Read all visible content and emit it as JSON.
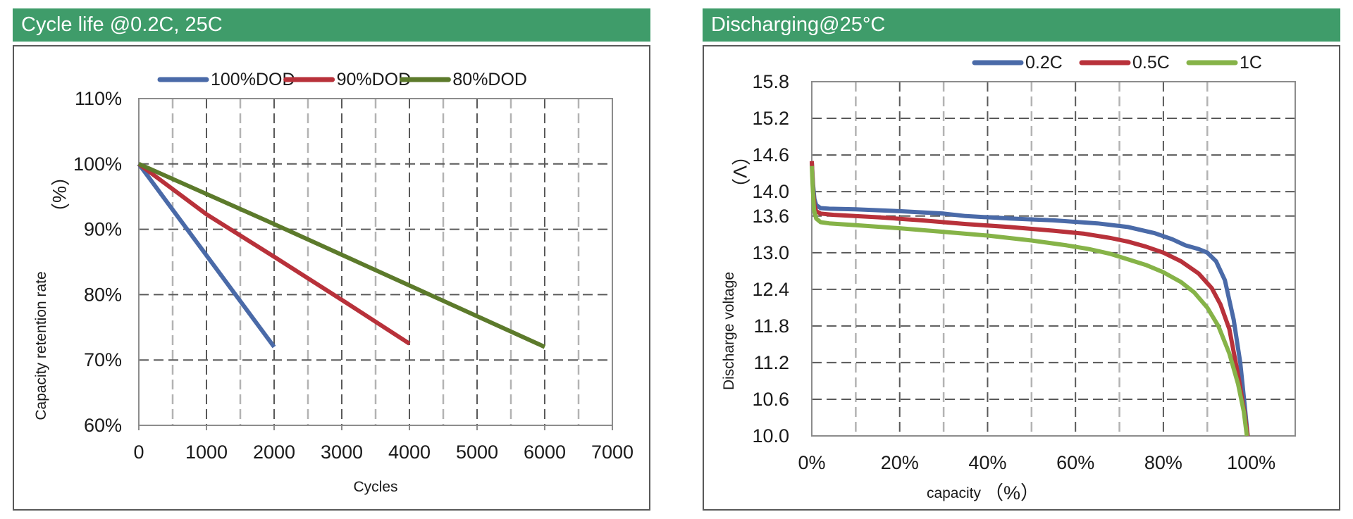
{
  "panels": [
    {
      "title": "Cycle life @0.2C, 25C"
    },
    {
      "title": "Discharging@25°C"
    }
  ],
  "colors": {
    "header_bg": "#3f9c6a",
    "header_text": "#ffffff",
    "grid_dark": "#595959",
    "grid_light": "#b3b3b3"
  },
  "chart_data": [
    {
      "type": "line",
      "title": "Cycle life @0.2C, 25C",
      "xlabel": "Cycles",
      "ylabel": "Capacity retention rate",
      "ylabel_unit": "（%）",
      "xlim": [
        0,
        7000
      ],
      "ylim": [
        60,
        110
      ],
      "xticks": [
        0,
        1000,
        2000,
        3000,
        4000,
        5000,
        6000,
        7000
      ],
      "xtick_labels": [
        "0",
        "1000",
        "2000",
        "3000",
        "4000",
        "5000",
        "6000",
        "7000"
      ],
      "yticks": [
        60,
        70,
        80,
        90,
        100,
        110
      ],
      "ytick_labels": [
        "60%",
        "70%",
        "80%",
        "90%",
        "100%",
        "110%"
      ],
      "grid": true,
      "legend_position": "top",
      "series": [
        {
          "name": "100%DOD",
          "color": "#4a6aa8",
          "x": [
            0,
            2000
          ],
          "y": [
            100,
            72
          ]
        },
        {
          "name": "90%DOD",
          "color": "#b8313a",
          "x": [
            0,
            1000,
            2000,
            3000,
            4000
          ],
          "y": [
            100,
            92.3,
            85.8,
            79.2,
            72.5
          ]
        },
        {
          "name": "80%DOD",
          "color": "#5c7a2b",
          "x": [
            0,
            2000,
            4000,
            6000
          ],
          "y": [
            100,
            90.8,
            81.4,
            72
          ]
        }
      ]
    },
    {
      "type": "line",
      "title": "Discharging@25°C",
      "xlabel": "capacity",
      "xlabel_unit": "（%）",
      "ylabel": "Discharge voltage",
      "ylabel_unit": "（V）",
      "xlim": [
        0,
        110
      ],
      "ylim": [
        10.0,
        15.8
      ],
      "xticks": [
        0,
        20,
        40,
        60,
        80,
        100
      ],
      "xtick_labels": [
        "0%",
        "20%",
        "40%",
        "60%",
        "80%",
        "100%"
      ],
      "yticks": [
        10.0,
        10.6,
        11.2,
        11.8,
        12.4,
        13.0,
        13.6,
        14.0,
        14.6,
        15.2,
        15.8
      ],
      "ytick_labels": [
        "10.0",
        "10.6",
        "11.2",
        "11.8",
        "12.4",
        "13.0",
        "13.6",
        "14.0",
        "14.6",
        "15.2",
        "15.8"
      ],
      "grid": true,
      "legend_position": "top-right",
      "series": [
        {
          "name": "0.2C",
          "color": "#4a6aa8",
          "x": [
            0,
            0.3,
            0.6,
            1,
            2,
            4,
            10,
            20,
            30,
            35,
            45,
            55,
            65,
            72,
            78,
            82,
            85,
            88,
            90,
            92,
            94,
            96,
            97.5,
            98.5,
            99.2
          ],
          "y": [
            14.48,
            14.1,
            13.88,
            13.78,
            13.73,
            13.72,
            13.71,
            13.68,
            13.64,
            13.6,
            13.56,
            13.53,
            13.48,
            13.42,
            13.32,
            13.22,
            13.12,
            13.06,
            13.0,
            12.86,
            12.55,
            11.9,
            11.2,
            10.5,
            10.0
          ]
        },
        {
          "name": "0.5C",
          "color": "#b8313a",
          "x": [
            0,
            0.3,
            0.6,
            1,
            2,
            5,
            15,
            25,
            35,
            45,
            55,
            62,
            68,
            72,
            76,
            80,
            84,
            88,
            91,
            93,
            95,
            97,
            98.4,
            99.2
          ],
          "y": [
            14.5,
            14.0,
            13.78,
            13.68,
            13.64,
            13.62,
            13.58,
            13.53,
            13.47,
            13.42,
            13.36,
            13.31,
            13.24,
            13.18,
            13.1,
            13.0,
            12.86,
            12.66,
            12.42,
            12.15,
            11.75,
            11.0,
            10.4,
            10.0
          ]
        },
        {
          "name": "1C",
          "color": "#86b348",
          "x": [
            0,
            0.2,
            0.5,
            1,
            2,
            4,
            10,
            20,
            30,
            40,
            50,
            58,
            63,
            68,
            72,
            76,
            80,
            84,
            87,
            90,
            92.5,
            95,
            97,
            98.3,
            99
          ],
          "y": [
            14.42,
            14.1,
            13.7,
            13.56,
            13.5,
            13.48,
            13.45,
            13.4,
            13.34,
            13.28,
            13.2,
            13.12,
            13.06,
            12.98,
            12.89,
            12.8,
            12.68,
            12.52,
            12.35,
            12.1,
            11.8,
            11.35,
            10.85,
            10.4,
            10.0
          ]
        }
      ]
    }
  ]
}
